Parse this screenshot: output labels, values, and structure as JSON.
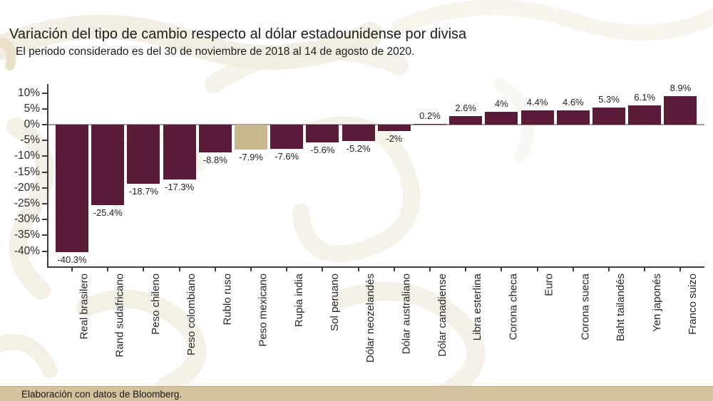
{
  "header": {
    "title": "Variación del tipo de cambio respecto al dólar estadounidense por divisa",
    "subtitle": "El periodo considerado es del 30 de noviembre de 2018 al 14 de agosto de 2020."
  },
  "footer": {
    "source": "Elaboración con datos de Bloomberg."
  },
  "colors": {
    "bar": "#591b37",
    "highlight_bar": "#c9b78f",
    "axis": "#3d3d3d",
    "zero_line": "#9b9b9b",
    "footer_bg": "#d3c29c",
    "watermark": "#f1ece0"
  },
  "chart_data": {
    "type": "bar",
    "title": "Variación del tipo de cambio respecto al dólar estadounidense por divisa",
    "subtitle": "El periodo considerado es del 30 de noviembre de 2018 al 14 de agosto de 2020.",
    "xlabel": "",
    "ylabel": "",
    "legend": "none",
    "grid": "zero-line-only",
    "ylim": [
      -44,
      14
    ],
    "highlight_category": "Peso mexicano",
    "categories": [
      "Real brasilero",
      "Rand sudafricano",
      "Peso chileno",
      "Peso colombiano",
      "Rublo ruso",
      "Peso mexicano",
      "Rupia india",
      "Sol peruano",
      "Dólar neozelandés",
      "Dólar australiano",
      "Dólar canadiense",
      "Libra esterlina",
      "Corona checa",
      "Euro",
      "Corona sueca",
      "Baht tailandés",
      "Yen japonés",
      "Franco suizo"
    ],
    "values": [
      -40.3,
      -25.4,
      -18.7,
      -17.3,
      -8.8,
      -7.9,
      -7.6,
      -5.6,
      -5.2,
      -2,
      0.2,
      2.6,
      4,
      4.4,
      4.6,
      5.3,
      6.1,
      8.9
    ],
    "value_labels": [
      "-40.3%",
      "-25.4%",
      "-18.7%",
      "-17.3%",
      "-8.8%",
      "-7.9%",
      "-7.6%",
      "-5.6%",
      "-5.2%",
      "-2%",
      "0.2%",
      "2.6%",
      "4%",
      "4.4%",
      "4.6%",
      "5.3%",
      "6.1%",
      "8.9%"
    ],
    "y_ticks": [
      {
        "label": "10%",
        "value": 10
      },
      {
        "label": "5%",
        "value": 5
      },
      {
        "label": "0%",
        "value": 0
      },
      {
        "label": "-5%",
        "value": -5
      },
      {
        "label": "-10%",
        "value": -10
      },
      {
        "label": "-15%",
        "value": -15
      },
      {
        "label": "-20%",
        "value": -20
      },
      {
        "label": "-25%",
        "value": -25
      },
      {
        "label": "-30%",
        "value": -30
      },
      {
        "label": "-35%",
        "value": -35
      },
      {
        "label": "-40%",
        "value": -40
      }
    ]
  }
}
